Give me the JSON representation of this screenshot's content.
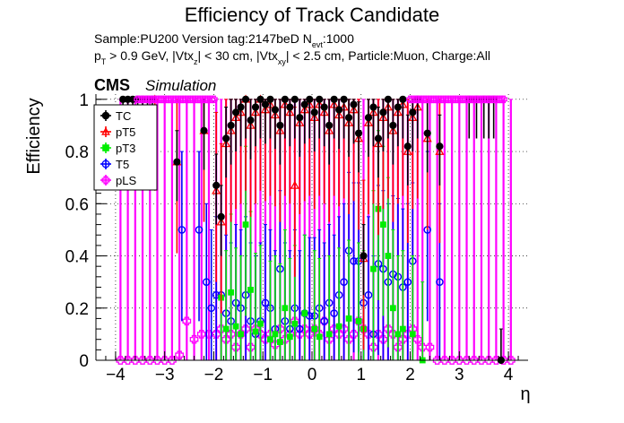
{
  "chart_data": {
    "type": "scatter",
    "title": "Efficiency of Track Candidate",
    "info_line1": "Sample:PU200   Version tag:2147beD  N",
    "info_line1_sub": "evt",
    "info_line1_tail": ":1000",
    "info_line2": {
      "p": "p",
      "p_sub": "T",
      "a": " > 0.9 GeV, |Vtx",
      "a_sub": "z",
      "b": "| < 30 cm, |Vtx",
      "b_sub": "xy",
      "c": "| < 2.5 cm, Particle:Muon, Charge:All"
    },
    "cms_label": "CMS",
    "simulation_label": "Simulation",
    "xlabel": "η",
    "ylabel": "Efficiency",
    "xlim": [
      -4.4,
      4.4
    ],
    "ylim": [
      0,
      1.02
    ],
    "x_ticks": [
      "−4",
      "−3",
      "−2",
      "−1",
      "0",
      "1",
      "2",
      "3",
      "4"
    ],
    "y_ticks": [
      "0",
      "0.2",
      "0.4",
      "0.6",
      "0.8",
      "1"
    ],
    "grid": true,
    "legend_position": "top-left",
    "series": [
      {
        "name": "TC",
        "color": "#000000",
        "marker": "filled-circle",
        "points": [
          [
            -3.85,
            1
          ],
          [
            -3.75,
            1
          ],
          [
            -3.65,
            1
          ],
          [
            -3.55,
            1
          ],
          [
            -3.45,
            1
          ],
          [
            -3.35,
            1
          ],
          [
            -3.25,
            1
          ],
          [
            -2.75,
            0.76
          ],
          [
            -2.2,
            0.88
          ],
          [
            -1.95,
            0.67
          ],
          [
            -1.85,
            0.55
          ],
          [
            -1.75,
            0.85
          ],
          [
            -1.65,
            0.9
          ],
          [
            -1.55,
            0.95
          ],
          [
            -1.45,
            0.97
          ],
          [
            -1.35,
            1
          ],
          [
            -1.25,
            0.92
          ],
          [
            -1.15,
            0.97
          ],
          [
            -1.05,
            1
          ],
          [
            -0.95,
            0.98
          ],
          [
            -0.85,
            1
          ],
          [
            -0.75,
            0.96
          ],
          [
            -0.65,
            0.9
          ],
          [
            -0.55,
            1
          ],
          [
            -0.45,
            0.97
          ],
          [
            -0.35,
            1
          ],
          [
            -0.25,
            0.93
          ],
          [
            -0.15,
            0.98
          ],
          [
            -0.05,
            1
          ],
          [
            0.05,
            0.95
          ],
          [
            0.15,
            1
          ],
          [
            0.25,
            0.97
          ],
          [
            0.35,
            0.9
          ],
          [
            0.45,
            1
          ],
          [
            0.55,
            0.96
          ],
          [
            0.65,
            1
          ],
          [
            0.75,
            0.93
          ],
          [
            0.85,
            0.98
          ],
          [
            0.95,
            0.87
          ],
          [
            1.05,
            0.4
          ],
          [
            1.15,
            0.93
          ],
          [
            1.25,
            0.97
          ],
          [
            1.35,
            0.85
          ],
          [
            1.45,
            0.95
          ],
          [
            1.55,
            1
          ],
          [
            1.65,
            0.9
          ],
          [
            1.75,
            0.97
          ],
          [
            1.85,
            1
          ],
          [
            1.95,
            0.82
          ],
          [
            2.05,
            0.95
          ],
          [
            2.15,
            1
          ],
          [
            2.35,
            0.87
          ],
          [
            2.6,
            0.82
          ],
          [
            3.2,
            1
          ],
          [
            3.35,
            1
          ],
          [
            3.5,
            1
          ],
          [
            3.6,
            1
          ],
          [
            3.7,
            1
          ],
          [
            3.85,
            0
          ]
        ]
      },
      {
        "name": "pT5",
        "color": "#ff0000",
        "marker": "open-triangle",
        "points": [
          [
            -3.2,
            1
          ],
          [
            -2.75,
            0.76
          ],
          [
            -2.2,
            0.88
          ],
          [
            -1.95,
            0.65
          ],
          [
            -1.85,
            0.53
          ],
          [
            -1.75,
            0.83
          ],
          [
            -1.65,
            0.88
          ],
          [
            -1.55,
            0.93
          ],
          [
            -1.45,
            0.95
          ],
          [
            -1.35,
            1
          ],
          [
            -1.25,
            0.9
          ],
          [
            -1.15,
            0.95
          ],
          [
            -1.05,
            1
          ],
          [
            -0.95,
            0.96
          ],
          [
            -0.85,
            0.98
          ],
          [
            -0.75,
            0.94
          ],
          [
            -0.65,
            0.88
          ],
          [
            -0.55,
            0.98
          ],
          [
            -0.45,
            0.95
          ],
          [
            -0.35,
            0.67
          ],
          [
            -0.25,
            0.91
          ],
          [
            -0.15,
            0.96
          ],
          [
            -0.05,
            0.98
          ],
          [
            0.05,
            0.93
          ],
          [
            0.15,
            0.98
          ],
          [
            0.25,
            0.95
          ],
          [
            0.35,
            0.88
          ],
          [
            0.45,
            0.98
          ],
          [
            0.55,
            0.94
          ],
          [
            0.65,
            0.97
          ],
          [
            0.75,
            0.91
          ],
          [
            0.85,
            0.96
          ],
          [
            0.95,
            0.85
          ],
          [
            1.05,
            0.39
          ],
          [
            1.15,
            0.91
          ],
          [
            1.25,
            0.95
          ],
          [
            1.35,
            0.83
          ],
          [
            1.45,
            0.93
          ],
          [
            1.55,
            0.97
          ],
          [
            1.65,
            0.88
          ],
          [
            1.75,
            0.95
          ],
          [
            1.85,
            0.98
          ],
          [
            1.95,
            0.8
          ],
          [
            2.05,
            0.93
          ],
          [
            2.15,
            0.97
          ],
          [
            2.35,
            0.85
          ],
          [
            2.6,
            0.8
          ]
        ]
      },
      {
        "name": "pT3",
        "color": "#00ee00",
        "marker": "filled-square",
        "points": [
          [
            -1.85,
            0.24
          ],
          [
            -1.75,
            0.12
          ],
          [
            -1.65,
            0.26
          ],
          [
            -1.55,
            0.13
          ],
          [
            -1.45,
            0.1
          ],
          [
            -1.35,
            0.52
          ],
          [
            -1.25,
            0.27
          ],
          [
            -1.15,
            0.11
          ],
          [
            -1.05,
            0.14
          ],
          [
            -0.85,
            0.08
          ],
          [
            -0.75,
            0.1
          ],
          [
            -0.65,
            0.07
          ],
          [
            -0.55,
            0.2
          ],
          [
            -0.45,
            0.09
          ],
          [
            -0.35,
            0.14
          ],
          [
            -0.15,
            0.18
          ],
          [
            0.05,
            0.12
          ],
          [
            0.15,
            0.09
          ],
          [
            0.35,
            0.1
          ],
          [
            0.55,
            0.13
          ],
          [
            0.75,
            0.16
          ],
          [
            0.95,
            0.15
          ],
          [
            1.05,
            0.12
          ],
          [
            1.25,
            0.35
          ],
          [
            1.35,
            0.58
          ],
          [
            1.45,
            0.52
          ],
          [
            1.55,
            0.4
          ],
          [
            1.65,
            0.2
          ],
          [
            1.75,
            0.1
          ],
          [
            1.85,
            0.12
          ],
          [
            2.05,
            0.1
          ],
          [
            2.25,
            0
          ]
        ]
      },
      {
        "name": "T5",
        "color": "#0000ff",
        "marker": "open-circle",
        "points": [
          [
            -2.65,
            0.5
          ],
          [
            -2.3,
            0.5
          ],
          [
            -2.15,
            0.3
          ],
          [
            -2.05,
            0.2
          ],
          [
            -1.95,
            0.25
          ],
          [
            -1.85,
            0.25
          ],
          [
            -1.75,
            0.18
          ],
          [
            -1.65,
            0.15
          ],
          [
            -1.55,
            0.22
          ],
          [
            -1.45,
            0.2
          ],
          [
            -1.35,
            0.25
          ],
          [
            -1.25,
            0.15
          ],
          [
            -1.15,
            0.1
          ],
          [
            -1.05,
            0.15
          ],
          [
            -0.95,
            0.22
          ],
          [
            -0.85,
            0.2
          ],
          [
            -0.75,
            0.12
          ],
          [
            -0.65,
            0.35
          ],
          [
            -0.55,
            0.15
          ],
          [
            -0.45,
            0.12
          ],
          [
            -0.35,
            0.2
          ],
          [
            -0.25,
            0.12
          ],
          [
            -0.15,
            0.18
          ],
          [
            -0.05,
            0.17
          ],
          [
            0.05,
            0.17
          ],
          [
            0.15,
            0.2
          ],
          [
            0.25,
            0.15
          ],
          [
            0.35,
            0.22
          ],
          [
            0.45,
            0.18
          ],
          [
            0.55,
            0.25
          ],
          [
            0.65,
            0.3
          ],
          [
            0.75,
            0.42
          ],
          [
            0.85,
            0.38
          ],
          [
            0.95,
            0.38
          ],
          [
            1.05,
            0.22
          ],
          [
            1.15,
            0.25
          ],
          [
            1.25,
            0.1
          ],
          [
            1.35,
            0.37
          ],
          [
            1.45,
            0.35
          ],
          [
            1.55,
            0.3
          ],
          [
            1.65,
            0.33
          ],
          [
            1.75,
            0.32
          ],
          [
            1.85,
            0.28
          ],
          [
            1.95,
            0.3
          ],
          [
            2.05,
            0.38
          ],
          [
            2.35,
            0.5
          ],
          [
            2.6,
            0.3
          ]
        ]
      },
      {
        "name": "pLS",
        "color": "#ff00ff",
        "marker": "open-cross",
        "points": [
          [
            -3.9,
            0
          ],
          [
            -3.75,
            0
          ],
          [
            -3.6,
            0
          ],
          [
            -3.45,
            0
          ],
          [
            -3.3,
            0
          ],
          [
            -3.15,
            0
          ],
          [
            -3,
            0
          ],
          [
            -2.85,
            0
          ],
          [
            -2.7,
            0.02
          ],
          [
            -2.55,
            0.15
          ],
          [
            -2.4,
            0.08
          ],
          [
            -2.25,
            0.1
          ],
          [
            -2.1,
            0.1
          ],
          [
            -1.95,
            0.1
          ],
          [
            -1.85,
            0.12
          ],
          [
            -1.75,
            0.08
          ],
          [
            -1.65,
            0.1
          ],
          [
            -1.55,
            0.05
          ],
          [
            -1.45,
            0.1
          ],
          [
            -1.35,
            0.12
          ],
          [
            -1.25,
            0.05
          ],
          [
            -1.15,
            0.12
          ],
          [
            -1.05,
            0.1
          ],
          [
            -0.95,
            0.08
          ],
          [
            -0.85,
            0.1
          ],
          [
            -0.75,
            0.06
          ],
          [
            -0.65,
            0.12
          ],
          [
            -0.55,
            0.08
          ],
          [
            -0.45,
            0.1
          ],
          [
            -0.35,
            0.15
          ],
          [
            -0.25,
            0.1
          ],
          [
            -0.15,
            0.12
          ],
          [
            -0.05,
            0.1
          ],
          [
            0.05,
            0.12
          ],
          [
            0.15,
            0.1
          ],
          [
            0.25,
            0.15
          ],
          [
            0.35,
            0.08
          ],
          [
            0.45,
            0.12
          ],
          [
            0.55,
            0.1
          ],
          [
            0.65,
            0.12
          ],
          [
            0.75,
            0.08
          ],
          [
            0.85,
            0.1
          ],
          [
            0.95,
            0.15
          ],
          [
            1.05,
            0.12
          ],
          [
            1.15,
            0.1
          ],
          [
            1.25,
            0.05
          ],
          [
            1.35,
            0.1
          ],
          [
            1.45,
            0.08
          ],
          [
            1.55,
            0.12
          ],
          [
            1.65,
            0.1
          ],
          [
            1.75,
            0.05
          ],
          [
            1.85,
            0.08
          ],
          [
            1.95,
            0.1
          ],
          [
            2.05,
            0.12
          ],
          [
            2.15,
            0.08
          ],
          [
            2.25,
            0.05
          ],
          [
            2.4,
            0.05
          ],
          [
            2.55,
            0
          ],
          [
            2.7,
            0
          ],
          [
            2.85,
            0
          ],
          [
            3,
            0
          ],
          [
            3.15,
            0
          ],
          [
            3.3,
            0
          ],
          [
            3.45,
            0
          ],
          [
            3.6,
            0
          ],
          [
            3.75,
            0
          ],
          [
            3.9,
            0
          ],
          [
            4.05,
            0
          ]
        ]
      }
    ],
    "top_markers_magenta_x": [
      -3.55,
      -3.5,
      -3.45,
      -3.4,
      -3.35,
      -3.3,
      -3.25,
      -3.2,
      -3.15,
      -3.1,
      -3.05,
      -3,
      -2.95,
      -2.9,
      -2.85,
      -2.8,
      -2.75,
      -2.7,
      -2.65,
      -2.6,
      -2.55,
      -2.5,
      -2.45,
      -2.4,
      -2.35,
      -2.3,
      -2.25,
      -2.2,
      -2.15,
      -2.1,
      -2.05,
      -2,
      2.0,
      2.05,
      2.1,
      2.15,
      2.2,
      2.25,
      2.3,
      2.35,
      2.4,
      2.45,
      2.5,
      2.55,
      2.6,
      2.65,
      2.7,
      2.75,
      2.8,
      2.85,
      2.9,
      2.95,
      3.0,
      3.05,
      3.1,
      3.15,
      3.2,
      3.25,
      3.3,
      3.35,
      3.4,
      3.45,
      3.5,
      3.55,
      3.6,
      3.65,
      3.7,
      3.75,
      3.8,
      3.85,
      3.9
    ]
  }
}
